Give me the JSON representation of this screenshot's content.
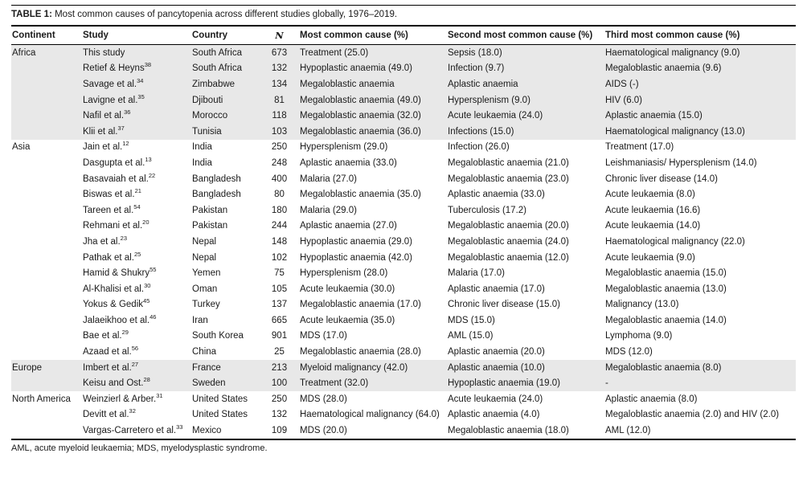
{
  "title": {
    "label": "TABLE 1:",
    "text": " Most common causes of pancytopenia across different studies globally, 1976–2019."
  },
  "footnote": "AML, acute myeloid leukaemia; MDS, myelodysplastic syndrome.",
  "table": {
    "headers": [
      "Continent",
      "Study",
      "Country",
      "N",
      "Most common cause (%)",
      "Second most common cause (%)",
      "Third most common cause (%)"
    ],
    "groups": [
      {
        "continent": "Africa",
        "shaded": true,
        "rows": [
          {
            "study": "This study",
            "ref": "",
            "country": "South Africa",
            "n": "673",
            "cause1": "Treatment (25.0)",
            "cause2": "Sepsis (18.0)",
            "cause3": "Haematological malignancy (9.0)"
          },
          {
            "study": "Retief & Heyns",
            "ref": "38",
            "country": "South Africa",
            "n": "132",
            "cause1": "Hypoplastic anaemia (49.0)",
            "cause2": "Infection (9.7)",
            "cause3": "Megaloblastic anaemia (9.6)"
          },
          {
            "study": "Savage et al.",
            "ref": "34",
            "country": "Zimbabwe",
            "n": "134",
            "cause1": "Megaloblastic anaemia",
            "cause2": "Aplastic anaemia",
            "cause3": "AIDS (-)"
          },
          {
            "study": "Lavigne et al.",
            "ref": "35",
            "country": "Djibouti",
            "n": "81",
            "cause1": "Megaloblastic anaemia (49.0)",
            "cause2": "Hypersplenism (9.0)",
            "cause3": "HIV (6.0)"
          },
          {
            "study": "Nafil et al.",
            "ref": "36",
            "country": "Morocco",
            "n": "118",
            "cause1": "Megaloblastic anaemia (32.0)",
            "cause2": "Acute leukaemia (24.0)",
            "cause3": "Aplastic anaemia (15.0)"
          },
          {
            "study": "Klii et al.",
            "ref": "37",
            "country": "Tunisia",
            "n": "103",
            "cause1": "Megaloblastic anaemia (36.0)",
            "cause2": "Infections (15.0)",
            "cause3": "Haematological malignancy (13.0)"
          }
        ]
      },
      {
        "continent": "Asia",
        "shaded": false,
        "rows": [
          {
            "study": "Jain et al.",
            "ref": "12",
            "country": "India",
            "n": "250",
            "cause1": "Hypersplenism (29.0)",
            "cause2": "Infection (26.0)",
            "cause3": "Treatment (17.0)"
          },
          {
            "study": "Dasgupta et al.",
            "ref": "13",
            "country": "India",
            "n": "248",
            "cause1": "Aplastic anaemia (33.0)",
            "cause2": "Megaloblastic anaemia (21.0)",
            "cause3": "Leishmaniasis/ Hypersplenism (14.0)"
          },
          {
            "study": "Basavaiah et al.",
            "ref": "22",
            "country": "Bangladesh",
            "n": "400",
            "cause1": "Malaria (27.0)",
            "cause2": "Megaloblastic anaemia (23.0)",
            "cause3": "Chronic liver disease (14.0)"
          },
          {
            "study": "Biswas et al.",
            "ref": "21",
            "country": "Bangladesh",
            "n": "80",
            "cause1": "Megaloblastic anaemia (35.0)",
            "cause2": "Aplastic anaemia (33.0)",
            "cause3": "Acute leukaemia (8.0)"
          },
          {
            "study": "Tareen et al.",
            "ref": "54",
            "country": "Pakistan",
            "n": "180",
            "cause1": "Malaria (29.0)",
            "cause2": "Tuberculosis (17.2)",
            "cause3": "Acute leukaemia (16.6)"
          },
          {
            "study": "Rehmani et al.",
            "ref": "20",
            "country": "Pakistan",
            "n": "244",
            "cause1": "Aplastic anaemia (27.0)",
            "cause2": "Megaloblastic anaemia (20.0)",
            "cause3": "Acute leukaemia (14.0)"
          },
          {
            "study": "Jha et al.",
            "ref": "23",
            "country": "Nepal",
            "n": "148",
            "cause1": "Hypoplastic anaemia (29.0)",
            "cause2": "Megaloblastic anaemia (24.0)",
            "cause3": "Haematological malignancy (22.0)"
          },
          {
            "study": "Pathak et al.",
            "ref": "25",
            "country": "Nepal",
            "n": "102",
            "cause1": "Hypoplastic anaemia (42.0)",
            "cause2": "Megaloblastic anaemia (12.0)",
            "cause3": "Acute leukaemia (9.0)"
          },
          {
            "study": "Hamid & Shukry",
            "ref": "55",
            "country": "Yemen",
            "n": "75",
            "cause1": "Hypersplenism (28.0)",
            "cause2": "Malaria (17.0)",
            "cause3": "Megaloblastic anaemia (15.0)"
          },
          {
            "study": "Al-Khalisi et al.",
            "ref": "30",
            "country": "Oman",
            "n": "105",
            "cause1": "Acute leukaemia (30.0)",
            "cause2": "Aplastic anaemia (17.0)",
            "cause3": "Megaloblastic anaemia (13.0)"
          },
          {
            "study": "Yokus & Gedik",
            "ref": "45",
            "country": "Turkey",
            "n": "137",
            "cause1": "Megaloblastic anaemia (17.0)",
            "cause2": "Chronic liver disease (15.0)",
            "cause3": "Malignancy (13.0)"
          },
          {
            "study": "Jalaeikhoo et al.",
            "ref": "46",
            "country": "Iran",
            "n": "665",
            "cause1": "Acute leukaemia (35.0)",
            "cause2": "MDS (15.0)",
            "cause3": "Megaloblastic anaemia (14.0)"
          },
          {
            "study": "Bae et al.",
            "ref": "29",
            "country": "South Korea",
            "n": "901",
            "cause1": "MDS (17.0)",
            "cause2": "AML (15.0)",
            "cause3": "Lymphoma (9.0)"
          },
          {
            "study": "Azaad et al.",
            "ref": "56",
            "country": "China",
            "n": "25",
            "cause1": "Megaloblastic anaemia (28.0)",
            "cause2": "Aplastic anaemia (20.0)",
            "cause3": "MDS (12.0)"
          }
        ]
      },
      {
        "continent": "Europe",
        "shaded": true,
        "rows": [
          {
            "study": "Imbert et al.",
            "ref": "27",
            "country": "France",
            "n": "213",
            "cause1": "Myeloid malignancy (42.0)",
            "cause2": "Aplastic anaemia (10.0)",
            "cause3": "Megaloblastic anaemia (8.0)"
          },
          {
            "study": "Keisu and Ost.",
            "ref": "28",
            "country": "Sweden",
            "n": "100",
            "cause1": "Treatment (32.0)",
            "cause2": "Hypoplastic anaemia (19.0)",
            "cause3": "-"
          }
        ]
      },
      {
        "continent": "North America",
        "shaded": false,
        "rows": [
          {
            "study": "Weinzierl & Arber.",
            "ref": "31",
            "country": "United States",
            "n": "250",
            "cause1": "MDS (28.0)",
            "cause2": "Acute leukaemia (24.0)",
            "cause3": "Aplastic anaemia (8.0)"
          },
          {
            "study": "Devitt et al.",
            "ref": "32",
            "country": "United States",
            "n": "132",
            "cause1": "Haematological malignancy (64.0)",
            "cause2": "Aplastic anaemia (4.0)",
            "cause3": "Megaloblastic anaemia (2.0) and HIV (2.0)"
          },
          {
            "study": "Vargas-Carretero et al.",
            "ref": "33",
            "country": "Mexico",
            "n": "109",
            "cause1": "MDS (20.0)",
            "cause2": "Megaloblastic anaemia (18.0)",
            "cause3": "AML (12.0)"
          }
        ]
      }
    ]
  }
}
